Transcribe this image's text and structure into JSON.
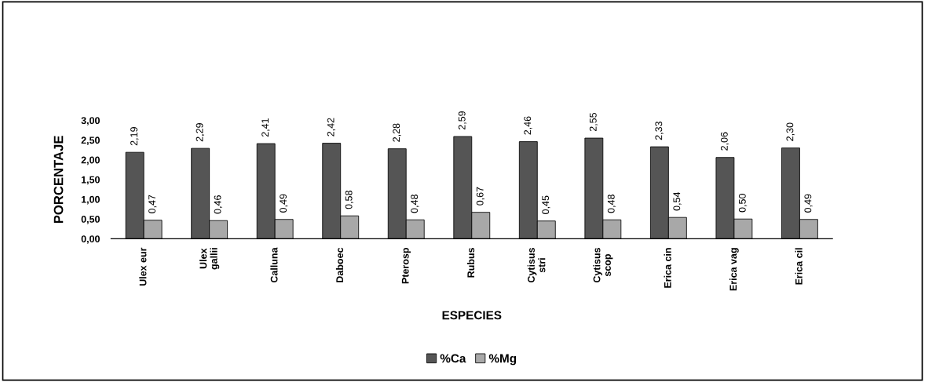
{
  "chart_data": {
    "type": "bar",
    "xlabel": "ESPECIES",
    "ylabel": "PORCENTAJE",
    "categories": [
      "Ulex eur",
      "Ulex\ngallii",
      "Calluna",
      "Daboec",
      "Pterosp",
      "Rubus",
      "Cytisus\nstri",
      "Cytisus\nscop",
      "Erica cin",
      "Erica vag",
      "Erica cil"
    ],
    "series": [
      {
        "name": "%Ca",
        "color": "#555555",
        "values": [
          2.19,
          2.29,
          2.41,
          2.42,
          2.28,
          2.59,
          2.46,
          2.55,
          2.33,
          2.06,
          2.3
        ],
        "value_labels": [
          "2,19",
          "2,29",
          "2,41",
          "2,42",
          "2,28",
          "2,59",
          "2,46",
          "2,55",
          "2,33",
          "2,06",
          "2,30"
        ]
      },
      {
        "name": "%Mg",
        "color": "#a8a8a8",
        "values": [
          0.47,
          0.46,
          0.49,
          0.58,
          0.48,
          0.67,
          0.45,
          0.48,
          0.54,
          0.5,
          0.49
        ],
        "value_labels": [
          "0,47",
          "0,46",
          "0,49",
          "0,58",
          "0,48",
          "0,67",
          "0,45",
          "0,48",
          "0,54",
          "0,50",
          "0,49"
        ]
      }
    ],
    "ylim": [
      0,
      3
    ],
    "yticks": [
      {
        "value": 0,
        "label": "0,00"
      },
      {
        "value": 0.5,
        "label": "0,50"
      },
      {
        "value": 1,
        "label": "1,00"
      },
      {
        "value": 1.5,
        "label": "1,50"
      },
      {
        "value": 2,
        "label": "2,00"
      },
      {
        "value": 2.5,
        "label": "2,50"
      },
      {
        "value": 3,
        "label": "3,00"
      }
    ],
    "grid": false,
    "legend": "bottom"
  }
}
